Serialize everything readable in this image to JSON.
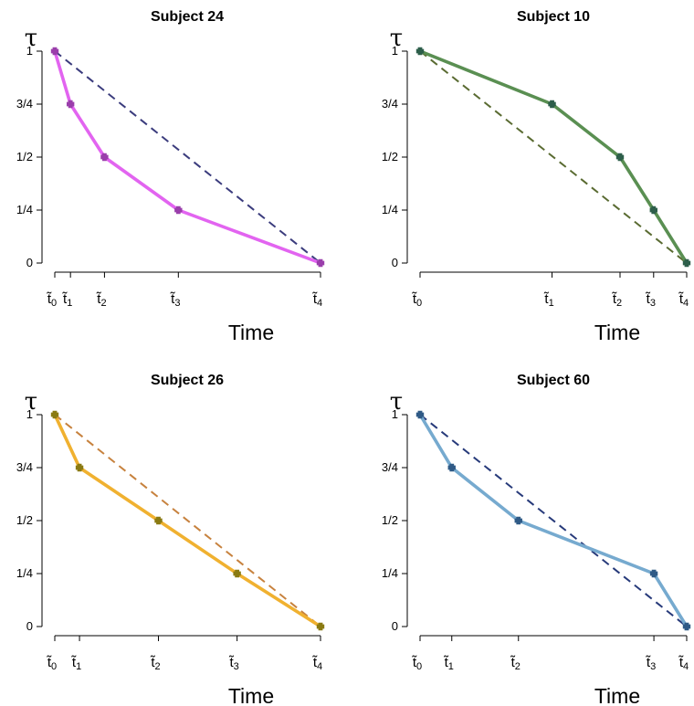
{
  "chart_data": [
    {
      "type": "line",
      "title": "Subject 24",
      "xlabel": "Time",
      "ylabel": "τ",
      "x_tick_labels": [
        "t̃0",
        "t̃1",
        "t̃2",
        "t̃3",
        "t̃4"
      ],
      "y_tick_labels": [
        "0",
        "1/4",
        "1/2",
        "3/4",
        "1"
      ],
      "ylim": [
        0,
        1
      ],
      "xlim": [
        0,
        1
      ],
      "series": [
        {
          "type": "diagonal",
          "x": [
            0,
            1
          ],
          "y": [
            1,
            0
          ],
          "style": "dashed",
          "color": "#3b3c7d"
        },
        {
          "type": "observed",
          "x": [
            0,
            0.059,
            0.187,
            0.465,
            1
          ],
          "y": [
            1,
            0.75,
            0.5,
            0.25,
            0
          ],
          "style": "solid",
          "color": "#e264f0",
          "marker_color": "#9a3eab"
        }
      ]
    },
    {
      "type": "line",
      "title": "Subject 10",
      "xlabel": "Time",
      "ylabel": "τ",
      "x_tick_labels": [
        "t̃0",
        "t̃1",
        "t̃2",
        "t̃3",
        "t̃4"
      ],
      "y_tick_labels": [
        "0",
        "1/4",
        "1/2",
        "3/4",
        "1"
      ],
      "ylim": [
        0,
        1
      ],
      "xlim": [
        0,
        1
      ],
      "series": [
        {
          "type": "diagonal",
          "x": [
            0,
            1
          ],
          "y": [
            1,
            0
          ],
          "style": "dashed",
          "color": "#5a6b32"
        },
        {
          "type": "observed",
          "x": [
            0,
            0.495,
            0.75,
            0.876,
            1
          ],
          "y": [
            1,
            0.75,
            0.5,
            0.25,
            0
          ],
          "style": "solid",
          "color": "#5a8f52",
          "marker_color": "#2d5e4a"
        }
      ]
    },
    {
      "type": "line",
      "title": "Subject 26",
      "xlabel": "Time",
      "ylabel": "τ",
      "x_tick_labels": [
        "t̃0",
        "t̃1",
        "t̃2",
        "t̃3",
        "t̃4"
      ],
      "y_tick_labels": [
        "0",
        "1/4",
        "1/2",
        "3/4",
        "1"
      ],
      "ylim": [
        0,
        1
      ],
      "xlim": [
        0,
        1
      ],
      "series": [
        {
          "type": "diagonal",
          "x": [
            0,
            1
          ],
          "y": [
            1,
            0
          ],
          "style": "dashed",
          "color": "#c7823e"
        },
        {
          "type": "observed",
          "x": [
            0,
            0.093,
            0.39,
            0.686,
            1
          ],
          "y": [
            1,
            0.75,
            0.5,
            0.25,
            0
          ],
          "style": "solid",
          "color": "#f0b130",
          "marker_color": "#8a7a12"
        }
      ]
    },
    {
      "type": "line",
      "title": "Subject 60",
      "xlabel": "Time",
      "ylabel": "τ",
      "x_tick_labels": [
        "t̃0",
        "t̃1",
        "t̃2",
        "t̃3",
        "t̃4"
      ],
      "y_tick_labels": [
        "0",
        "1/4",
        "1/2",
        "3/4",
        "1"
      ],
      "ylim": [
        0,
        1
      ],
      "xlim": [
        0,
        1
      ],
      "series": [
        {
          "type": "diagonal",
          "x": [
            0,
            1
          ],
          "y": [
            1,
            0
          ],
          "style": "dashed",
          "color": "#273a7a"
        },
        {
          "type": "observed",
          "x": [
            0,
            0.119,
            0.369,
            0.877,
            1
          ],
          "y": [
            1,
            0.75,
            0.5,
            0.25,
            0
          ],
          "style": "solid",
          "color": "#76aacf",
          "marker_color": "#2f5a86"
        }
      ]
    }
  ]
}
